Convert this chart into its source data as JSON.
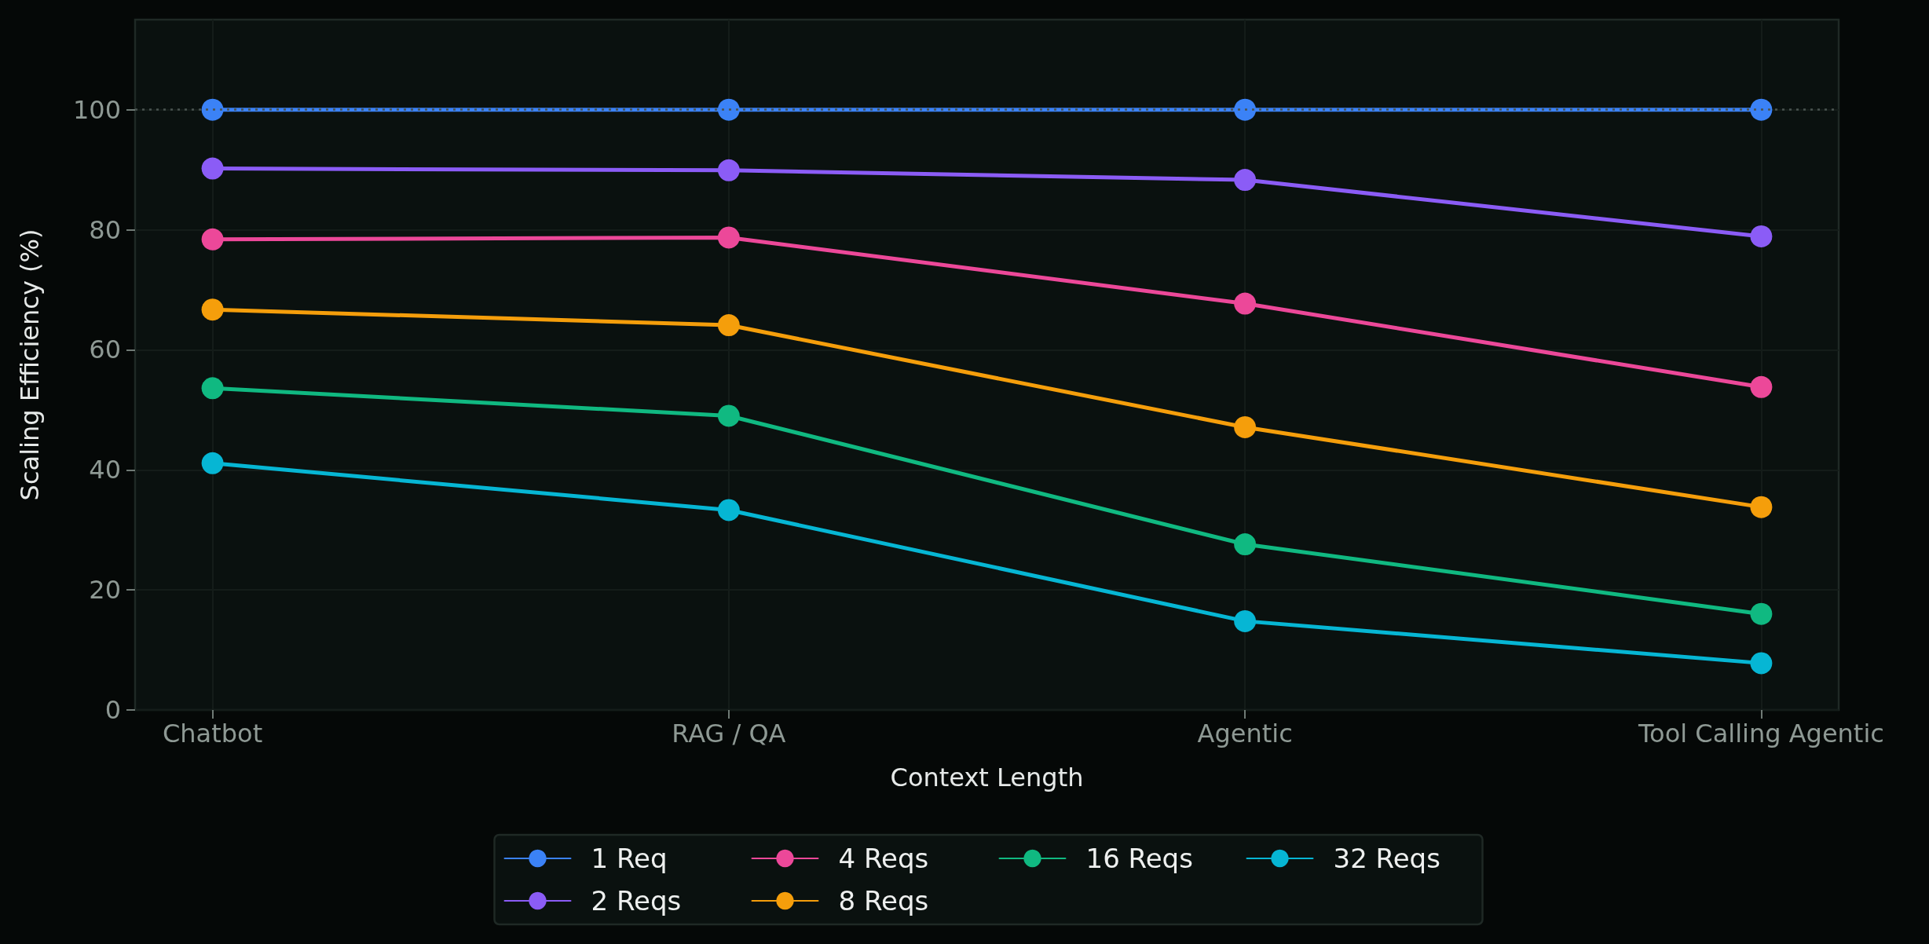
{
  "chart_data": {
    "type": "line",
    "xlabel": "Context Length",
    "ylabel": "Scaling Efficiency (%)",
    "categories": [
      "Chatbot",
      "RAG / QA",
      "Agentic",
      "Tool Calling Agentic"
    ],
    "series": [
      {
        "name": "1 Req",
        "color": "#3b82f6",
        "values": [
          100,
          100,
          100,
          100
        ]
      },
      {
        "name": "2 Reqs",
        "color": "#8b5cf6",
        "values": [
          90.2,
          89.9,
          88.3,
          78.9
        ]
      },
      {
        "name": "4 Reqs",
        "color": "#ec4899",
        "values": [
          78.4,
          78.7,
          67.7,
          53.8
        ]
      },
      {
        "name": "8 Reqs",
        "color": "#f59e0b",
        "values": [
          66.7,
          64.1,
          47.1,
          33.8
        ]
      },
      {
        "name": "16 Reqs",
        "color": "#10b981",
        "values": [
          53.6,
          49.0,
          27.6,
          16.0
        ]
      },
      {
        "name": "32 Reqs",
        "color": "#06b6d4",
        "values": [
          41.1,
          33.3,
          14.8,
          7.8
        ]
      }
    ],
    "ylim": [
      0,
      115
    ],
    "yticks": [
      0,
      20,
      40,
      60,
      80,
      100
    ],
    "grid": true,
    "legend": "bottom",
    "marker": "circle",
    "line_style": "solid",
    "ref_lines": [
      {
        "axis": "y",
        "value": 100,
        "color": "#4a5350",
        "line_style": "dotted"
      }
    ]
  }
}
